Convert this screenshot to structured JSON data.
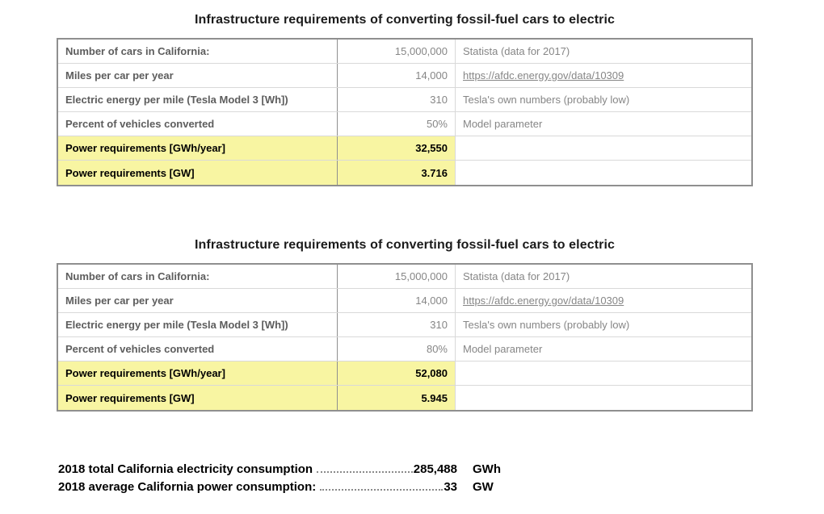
{
  "colors": {
    "highlight_yellow": "#f8f5a2",
    "label_gray": "#5d5d5d",
    "value_gray": "#868686",
    "outer_border": "#8f8f8f",
    "inner_border": "#d9d9d9",
    "title_black": "#1b1b1b"
  },
  "tables": [
    {
      "title": "Infrastructure requirements of converting fossil-fuel cars to electric",
      "rows": [
        {
          "label": "Number of cars in California:",
          "value": "15,000,000",
          "source": "Statista (data for 2017)"
        },
        {
          "label": "Miles per car per year",
          "value": "14,000",
          "source": "https://afdc.energy.gov/data/10309"
        },
        {
          "label": "Electric energy per mile (Tesla Model 3 [Wh])",
          "value": "310",
          "source": "Tesla's own numbers (probably low)"
        },
        {
          "label": "Percent of vehicles converted",
          "value": "50%",
          "source": "Model parameter"
        },
        {
          "label": "Power requirements [GWh/year]",
          "value": "32,550",
          "source": ""
        },
        {
          "label": "Power requirements [GW]",
          "value": "3.716",
          "source": ""
        }
      ]
    },
    {
      "title": "Infrastructure requirements of converting fossil-fuel cars to electric",
      "rows": [
        {
          "label": "Number of cars in California:",
          "value": "15,000,000",
          "source": "Statista (data for 2017)"
        },
        {
          "label": "Miles per car per year",
          "value": "14,000",
          "source": "https://afdc.energy.gov/data/10309"
        },
        {
          "label": "Electric energy per mile (Tesla Model 3 [Wh])",
          "value": "310",
          "source": "Tesla's own numbers (probably low)"
        },
        {
          "label": "Percent of vehicles converted",
          "value": "80%",
          "source": "Model parameter"
        },
        {
          "label": "Power requirements [GWh/year]",
          "value": "52,080",
          "source": ""
        },
        {
          "label": "Power requirements [GW]",
          "value": "5.945",
          "source": ""
        }
      ]
    }
  ],
  "footer": {
    "lines": [
      {
        "label": "2018 total California electricity consumption",
        "value": "285,488",
        "unit": "GWh"
      },
      {
        "label": "2018 average California power consumption:",
        "value": "33",
        "unit": "GW"
      }
    ]
  }
}
